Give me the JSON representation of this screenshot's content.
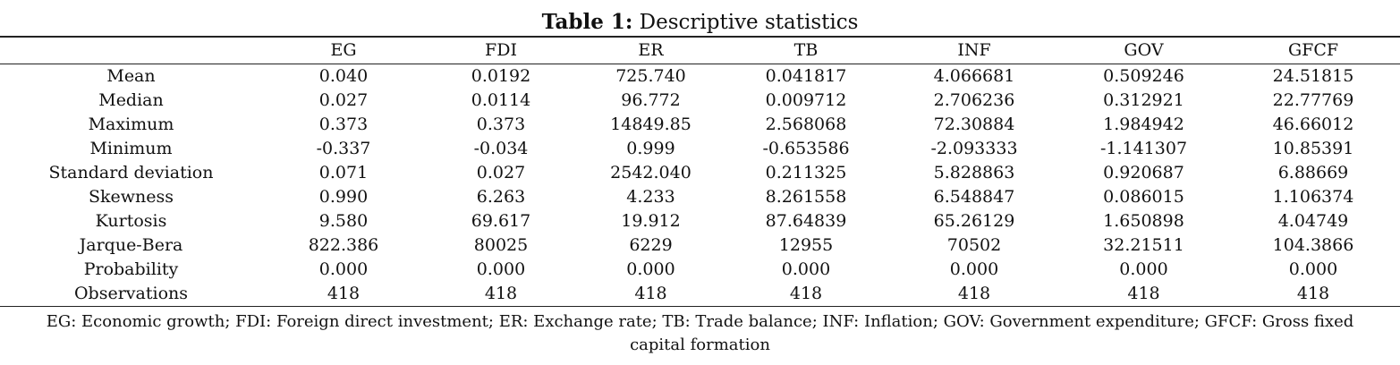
{
  "title": {
    "label": "Table 1:",
    "text": "Descriptive statistics"
  },
  "table": {
    "columns": [
      "",
      "EG",
      "FDI",
      "ER",
      "TB",
      "INF",
      "GOV",
      "GFCF"
    ],
    "rows": [
      [
        "Mean",
        "0.040",
        "0.0192",
        "725.740",
        "0.041817",
        "4.066681",
        "0.509246",
        "24.51815"
      ],
      [
        "Median",
        "0.027",
        "0.0114",
        "96.772",
        "0.009712",
        "2.706236",
        "0.312921",
        "22.77769"
      ],
      [
        "Maximum",
        "0.373",
        "0.373",
        "14849.85",
        "2.568068",
        "72.30884",
        "1.984942",
        "46.66012"
      ],
      [
        "Minimum",
        "-0.337",
        "-0.034",
        "0.999",
        "-0.653586",
        "-2.093333",
        "-1.141307",
        "10.85391"
      ],
      [
        "Standard deviation",
        "0.071",
        "0.027",
        "2542.040",
        "0.211325",
        "5.828863",
        "0.920687",
        "6.88669"
      ],
      [
        "Skewness",
        "0.990",
        "6.263",
        "4.233",
        "8.261558",
        "6.548847",
        "0.086015",
        "1.106374"
      ],
      [
        "Kurtosis",
        "9.580",
        "69.617",
        "19.912",
        "87.64839",
        "65.26129",
        "1.650898",
        "4.04749"
      ],
      [
        "Jarque-Bera",
        "822.386",
        "80025",
        "6229",
        "12955",
        "70502",
        "32.21511",
        "104.3866"
      ],
      [
        "Probability",
        "0.000",
        "0.000",
        "0.000",
        "0.000",
        "0.000",
        "0.000",
        "0.000"
      ],
      [
        "Observations",
        "418",
        "418",
        "418",
        "418",
        "418",
        "418",
        "418"
      ]
    ]
  },
  "footnote": "EG: Economic growth; FDI: Foreign direct investment; ER: Exchange rate; TB: Trade balance; INF: Inflation; GOV: Government expenditure; GFCF: Gross fixed capital formation"
}
